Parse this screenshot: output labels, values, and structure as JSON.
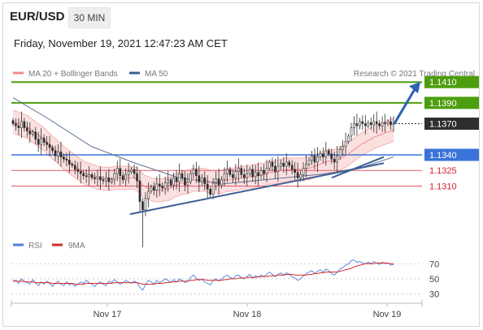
{
  "header": {
    "symbol": "EUR/USD",
    "timeframe": "30 MIN",
    "datetime": "Friday, November 19, 2021 12:47:23 AM CET"
  },
  "legend": {
    "ma20": "MA 20 + Bollinger Bands",
    "ma50": "MA 50",
    "credit": "Research © 2021 Trading Central",
    "rsi": "RSI",
    "rsi_ma": "9MA"
  },
  "colors": {
    "green_level": "#4d9e0f",
    "blue_level": "#3a73d9",
    "red_level": "#e05a6a",
    "ma20": "#f28b8b",
    "ma50": "#3d5e94",
    "arrow": "#2e62b3",
    "candle": "#2f2f2f",
    "last_price_box": "#2e2e2e",
    "rsi_line": "#4f7fd9",
    "rsi_ma_line": "#d42a2a"
  },
  "chart_data": [
    {
      "type": "candlestick",
      "y_range": [
        1.1255,
        1.1425
      ],
      "x_labels": [
        "Nov 17",
        "Nov 18",
        "Nov 19"
      ],
      "price_levels": [
        {
          "value": "1.1410",
          "kind": "resistance",
          "color": "#4d9e0f"
        },
        {
          "value": "1.1390",
          "kind": "resistance",
          "color": "#4d9e0f"
        },
        {
          "value": "1.1370",
          "kind": "last_price",
          "color": "#2e2e2e"
        },
        {
          "value": "1.1340",
          "kind": "pivot",
          "color": "#3a73d9"
        },
        {
          "value": "1.1325",
          "kind": "support",
          "color": "#e05a6a"
        },
        {
          "value": "1.1310",
          "kind": "support",
          "color": "#e05a6a"
        }
      ],
      "close_series": [
        1.137,
        1.1368,
        1.1366,
        1.1372,
        1.1366,
        1.1363,
        1.136,
        1.1362,
        1.1355,
        1.135,
        1.1356,
        1.1352,
        1.135,
        1.1347,
        1.1344,
        1.1339,
        1.1343,
        1.1338,
        1.1336,
        1.1335,
        1.1331,
        1.133,
        1.1326,
        1.1324,
        1.1322,
        1.132,
        1.1319,
        1.1321,
        1.1318,
        1.1317,
        1.1319,
        1.1316,
        1.1315,
        1.1318,
        1.1314,
        1.1316,
        1.1322,
        1.1327,
        1.132,
        1.1316,
        1.1321,
        1.1324,
        1.1326,
        1.1322,
        1.1315,
        1.1295,
        1.1287,
        1.1298,
        1.1305,
        1.1309,
        1.1306,
        1.1312,
        1.131,
        1.1308,
        1.1313,
        1.1316,
        1.1311,
        1.1318,
        1.1314,
        1.1322,
        1.1318,
        1.1311,
        1.1314,
        1.1322,
        1.1326,
        1.132,
        1.1314,
        1.1318,
        1.1312,
        1.1307,
        1.1302,
        1.1313,
        1.1317,
        1.1311,
        1.1316,
        1.1322,
        1.1326,
        1.1321,
        1.1318,
        1.1324,
        1.1327,
        1.1321,
        1.1318,
        1.1322,
        1.1326,
        1.1319,
        1.1323,
        1.132,
        1.1325,
        1.1322,
        1.1327,
        1.1333,
        1.1329,
        1.1324,
        1.1329,
        1.1332,
        1.1329,
        1.1333,
        1.133,
        1.1326,
        1.1323,
        1.1318,
        1.1321,
        1.1327,
        1.1331,
        1.1335,
        1.1339,
        1.1333,
        1.1338,
        1.1341,
        1.1338,
        1.1344,
        1.1341,
        1.1336,
        1.1333,
        1.1339,
        1.1345,
        1.1348,
        1.1353,
        1.1358,
        1.1366,
        1.137,
        1.1368,
        1.1372,
        1.137,
        1.1368,
        1.1371,
        1.1369,
        1.1372,
        1.137,
        1.1368,
        1.1371,
        1.137,
        1.1372,
        1.1369,
        1.137
      ],
      "ma20": [
        1.1372,
        1.1371,
        1.137,
        1.1369,
        1.1368,
        1.1367,
        1.1365,
        1.1363,
        1.1361,
        1.1359,
        1.1357,
        1.1355,
        1.1352,
        1.135,
        1.1347,
        1.1345,
        1.1342,
        1.134,
        1.1337,
        1.1335,
        1.1333,
        1.1331,
        1.1329,
        1.1327,
        1.1325,
        1.1323,
        1.1322,
        1.1321,
        1.132,
        1.1319,
        1.1318,
        1.1318,
        1.1317,
        1.1317,
        1.1317,
        1.1317,
        1.1318,
        1.1318,
        1.1318,
        1.1318,
        1.1318,
        1.1318,
        1.1318,
        1.1318,
        1.1316,
        1.1314,
        1.1311,
        1.1309,
        1.1308,
        1.1307,
        1.1306,
        1.1306,
        1.1306,
        1.1306,
        1.1307,
        1.1307,
        1.1308,
        1.131,
        1.1311,
        1.1312,
        1.1313,
        1.1313,
        1.1314,
        1.1315,
        1.1316,
        1.1316,
        1.1316,
        1.1316,
        1.1316,
        1.1315,
        1.1314,
        1.1314,
        1.1314,
        1.1314,
        1.1314,
        1.1315,
        1.1316,
        1.1316,
        1.1316,
        1.1317,
        1.1317,
        1.1318,
        1.1318,
        1.1319,
        1.1319,
        1.1319,
        1.132,
        1.132,
        1.1321,
        1.1321,
        1.1322,
        1.1323,
        1.1323,
        1.1323,
        1.1324,
        1.1325,
        1.1325,
        1.1326,
        1.1326,
        1.1326,
        1.1326,
        1.1326,
        1.1326,
        1.1326,
        1.1327,
        1.1327,
        1.1328,
        1.1329,
        1.133,
        1.1331,
        1.1332,
        1.1333,
        1.1334,
        1.1334,
        1.1334,
        1.1335,
        1.1336,
        1.1338,
        1.1339,
        1.1341,
        1.1343,
        1.1345,
        1.1347,
        1.1349,
        1.1351,
        1.1352,
        1.1354,
        1.1355,
        1.1357,
        1.1358,
        1.1359,
        1.136,
        1.1361,
        1.1362,
        1.1363,
        1.1364
      ],
      "ma50_points": [
        [
          0,
          1.1395
        ],
        [
          20,
          1.1375
        ],
        [
          45,
          1.1348
        ],
        [
          70,
          1.1332
        ],
        [
          95,
          1.1318
        ],
        [
          120,
          1.1312
        ],
        [
          150,
          1.1317
        ],
        [
          180,
          1.1322
        ],
        [
          200,
          1.1328
        ],
        [
          218,
          1.1338
        ]
      ],
      "trendlines": [
        {
          "from": [
            0,
            1.1283
          ],
          "to": [
            146,
            1.1332
          ],
          "color": "#3d5e94"
        },
        {
          "from": [
            88,
            1.1318
          ],
          "to": [
            138,
            1.1338
          ],
          "color": "#3d5e94"
        }
      ],
      "arrow": {
        "from": [
          138,
          1.137
        ],
        "to": [
          160,
          1.1407
        ],
        "color": "#2e62b3"
      }
    },
    {
      "type": "line",
      "name": "RSI",
      "y_ticks": [
        70,
        50,
        30
      ],
      "y_range": [
        22,
        80
      ],
      "series": [
        {
          "name": "RSI",
          "values": [
            46,
            48,
            44,
            50,
            47,
            45,
            43,
            49,
            45,
            41,
            46,
            43,
            47,
            44,
            40,
            44,
            47,
            43,
            41,
            46,
            42,
            44,
            40,
            43,
            46,
            44,
            48,
            45,
            43,
            40,
            44,
            46,
            43,
            41,
            47,
            45,
            49,
            46,
            43,
            45,
            48,
            46,
            44,
            47,
            45,
            39,
            35,
            42,
            48,
            46,
            43,
            48,
            45,
            47,
            50,
            48,
            45,
            49,
            46,
            50,
            48,
            45,
            47,
            52,
            55,
            51,
            48,
            50,
            46,
            44,
            42,
            48,
            50,
            47,
            50,
            53,
            55,
            52,
            50,
            54,
            55,
            52,
            50,
            53,
            56,
            51,
            54,
            52,
            55,
            53,
            56,
            59,
            56,
            53,
            56,
            58,
            55,
            58,
            56,
            53,
            51,
            48,
            50,
            54,
            57,
            59,
            61,
            57,
            60,
            62,
            59,
            63,
            61,
            57,
            55,
            59,
            63,
            65,
            68,
            70,
            74,
            75,
            72,
            73,
            71,
            70,
            72,
            70,
            73,
            71,
            69,
            72,
            70,
            71,
            68,
            69
          ]
        },
        {
          "name": "9MA",
          "values": [
            48,
            47,
            47,
            47,
            46,
            46,
            46,
            46,
            45,
            45,
            45,
            45,
            45,
            45,
            44,
            44,
            44,
            44,
            44,
            44,
            44,
            44,
            43,
            43,
            43,
            43,
            44,
            44,
            44,
            44,
            44,
            44,
            44,
            44,
            44,
            44,
            45,
            45,
            45,
            45,
            45,
            45,
            45,
            45,
            45,
            44,
            43,
            43,
            43,
            43,
            43,
            44,
            44,
            44,
            45,
            45,
            46,
            46,
            46,
            47,
            47,
            47,
            47,
            48,
            48,
            49,
            49,
            49,
            49,
            48,
            48,
            48,
            48,
            48,
            48,
            49,
            49,
            50,
            50,
            50,
            51,
            51,
            51,
            52,
            52,
            52,
            52,
            53,
            53,
            53,
            53,
            54,
            54,
            54,
            55,
            55,
            55,
            56,
            56,
            56,
            55,
            55,
            55,
            55,
            55,
            56,
            56,
            57,
            57,
            58,
            58,
            59,
            59,
            59,
            59,
            59,
            60,
            61,
            62,
            63,
            64,
            66,
            67,
            68,
            69,
            70,
            70,
            70,
            70,
            71,
            71,
            71,
            71,
            71,
            70,
            70
          ]
        }
      ]
    }
  ]
}
